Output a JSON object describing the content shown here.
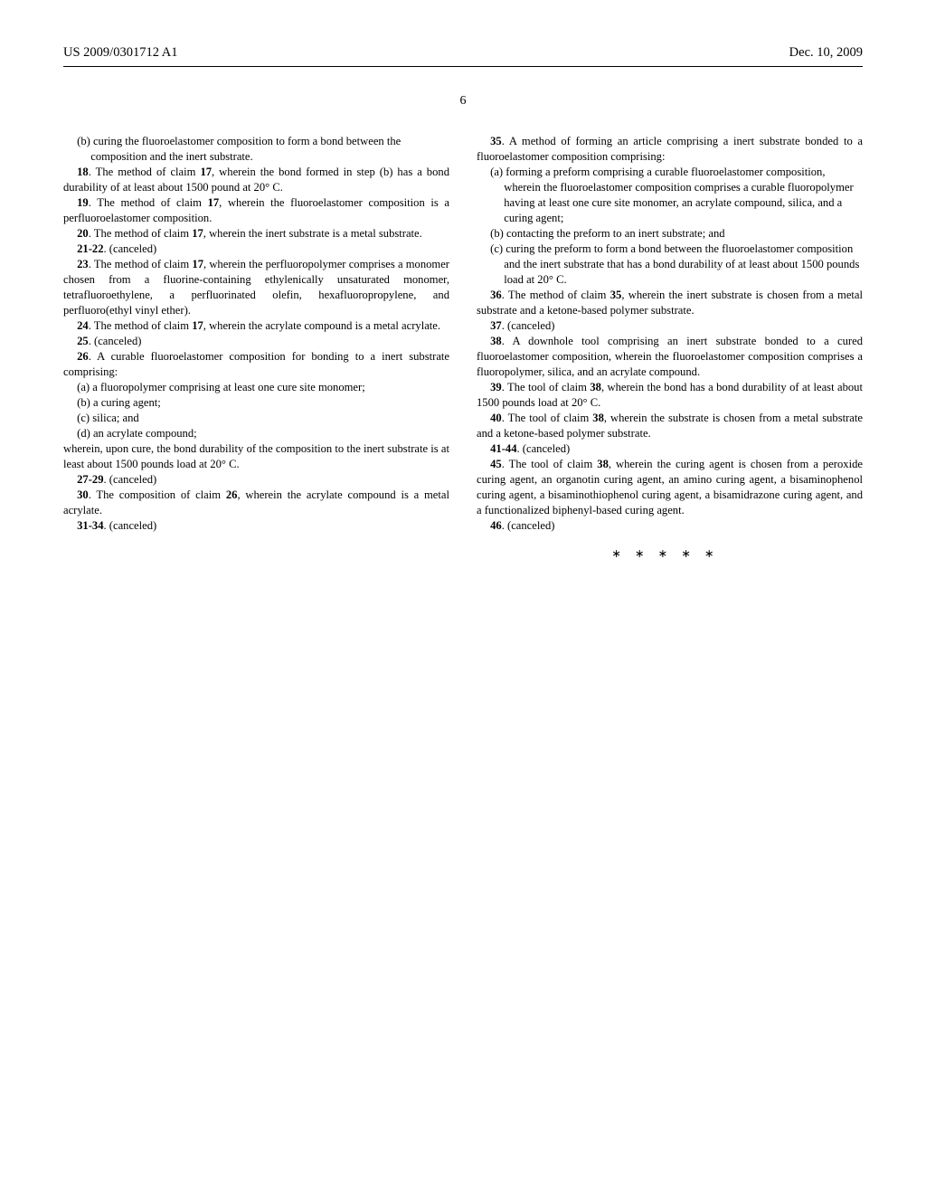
{
  "header": {
    "pub_number": "US 2009/0301712 A1",
    "pub_date": "Dec. 10, 2009"
  },
  "page_number": "6",
  "col1": {
    "p1_sub": "(b) curing the fluoroelastomer composition to form a bond between the composition and the inert substrate.",
    "p2": "18. The method of claim 17, wherein the bond formed in step (b) has a bond durability of at least about 1500 pound at 20° C.",
    "p2_bold": "18",
    "p3": "19. The method of claim 17, wherein the fluoroelastomer composition is a perfluoroelastomer composition.",
    "p3_bold": "19",
    "p4": "20. The method of claim 17, wherein the inert substrate is a metal substrate.",
    "p4_bold": "20",
    "p5": "21-22. (canceled)",
    "p5_bold": "21-22",
    "p6": "23. The method of claim 17, wherein the perfluoropolymer comprises a monomer chosen from a fluorine-containing ethylenically unsaturated monomer, tetrafluoroethylene, a perfluorinated olefin, hexafluoropropylene, and perfluoro(ethyl vinyl ether).",
    "p6_bold": "23",
    "p7": "24. The method of claim 17, wherein the acrylate compound is a metal acrylate.",
    "p7_bold": "24",
    "p8": "25. (canceled)",
    "p8_bold": "25",
    "p9": "26. A curable fluoroelastomer composition for bonding to a inert substrate comprising:",
    "p9_bold": "26",
    "p9_a": "(a) a fluoropolymer comprising at least one cure site monomer;",
    "p9_b": "(b) a curing agent;",
    "p9_c": "(c) silica; and",
    "p9_d": "(d) an acrylate compound;",
    "p10": "wherein, upon cure, the bond durability of the composition to the inert substrate is at least about 1500 pounds load at 20° C.",
    "p11": "27-29. (canceled)",
    "p11_bold": "27-29",
    "p12": "30. The composition of claim 26, wherein the acrylate compound is a metal acrylate.",
    "p12_bold": "30",
    "p13": "31-34. (canceled)",
    "p13_bold": "31-34"
  },
  "col2": {
    "p1": "35. A method of forming an article comprising a inert substrate bonded to a fluoroelastomer composition comprising:",
    "p1_bold": "35",
    "p1_a": "(a) forming a preform comprising a curable fluoroelastomer composition, wherein the fluoroelastomer composition comprises a curable fluoropolymer having at least one cure site monomer, an acrylate compound, silica, and a curing agent;",
    "p1_b": "(b) contacting the preform to an inert substrate; and",
    "p1_c": "(c) curing the preform to form a bond between the fluoroelastomer composition and the inert substrate that has a bond durability of at least about 1500 pounds load at 20° C.",
    "p2": "36. The method of claim 35, wherein the inert substrate is chosen from a metal substrate and a ketone-based polymer substrate.",
    "p2_bold": "36",
    "p3": "37. (canceled)",
    "p3_bold": "37",
    "p4": "38. A downhole tool comprising an inert substrate bonded to a cured fluoroelastomer composition, wherein the fluoroelastomer composition comprises a fluoropolymer, silica, and an acrylate compound.",
    "p4_bold": "38",
    "p5": "39. The tool of claim 38, wherein the bond has a bond durability of at least about 1500 pounds load at 20° C.",
    "p5_bold": "39",
    "p6": "40. The tool of claim 38, wherein the substrate is chosen from a metal substrate and a ketone-based polymer substrate.",
    "p6_bold": "40",
    "p7": "41-44. (canceled)",
    "p7_bold": "41-44",
    "p8": "45. The tool of claim 38, wherein the curing agent is chosen from a peroxide curing agent, an organotin curing agent, an amino curing agent, a bisaminophenol curing agent, a bisaminothiophenol curing agent, a bisamidrazone curing agent, and a functionalized biphenyl-based curing agent.",
    "p8_bold": "45",
    "p9": "46. (canceled)",
    "p9_bold": "46",
    "stars": "∗∗∗∗∗"
  }
}
